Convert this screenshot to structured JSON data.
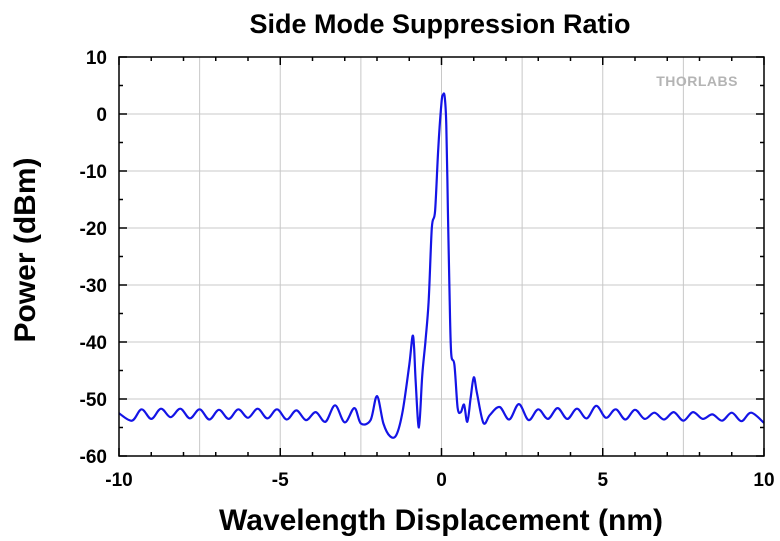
{
  "chart_data": {
    "type": "line",
    "title": "Side Mode Suppression Ratio",
    "xlabel": "Wavelength Displacement (nm)",
    "ylabel": "Power (dBm)",
    "xlim": [
      -10,
      10
    ],
    "ylim": [
      -60,
      10
    ],
    "xticks": [
      -10,
      -5,
      0,
      5,
      10
    ],
    "yticks": [
      10,
      0,
      -10,
      -20,
      -30,
      -40,
      -50,
      -60
    ],
    "grid": true,
    "watermark": "THORLABS",
    "series_color": "#1414e6",
    "series": [
      {
        "x": [
          -10.0,
          -9.6,
          -9.3,
          -9.0,
          -8.7,
          -8.4,
          -8.1,
          -7.8,
          -7.5,
          -7.2,
          -6.9,
          -6.6,
          -6.3,
          -6.0,
          -5.7,
          -5.4,
          -5.1,
          -4.8,
          -4.5,
          -4.2,
          -3.9,
          -3.6,
          -3.3,
          -3.0,
          -2.7,
          -2.5,
          -2.2,
          -2.0,
          -1.8,
          -1.6,
          -1.4,
          -1.2,
          -1.0,
          -0.9,
          -0.85,
          -0.8,
          -0.7,
          -0.6,
          -0.5,
          -0.4,
          -0.3,
          -0.2,
          -0.1,
          0.0,
          0.05,
          0.1,
          0.15,
          0.2,
          0.25,
          0.3,
          0.4,
          0.5,
          0.6,
          0.7,
          0.8,
          0.9,
          1.0,
          1.1,
          1.3,
          1.5,
          1.8,
          2.1,
          2.4,
          2.7,
          3.0,
          3.3,
          3.6,
          3.9,
          4.2,
          4.5,
          4.8,
          5.1,
          5.4,
          5.7,
          6.0,
          6.3,
          6.6,
          6.9,
          7.2,
          7.5,
          7.8,
          8.1,
          8.4,
          8.7,
          9.0,
          9.3,
          9.6,
          10.0
        ],
        "y": [
          -52.5,
          -53.8,
          -51.8,
          -53.5,
          -51.7,
          -53.2,
          -51.7,
          -53.4,
          -51.8,
          -53.6,
          -51.9,
          -53.5,
          -51.8,
          -53.3,
          -51.7,
          -53.4,
          -51.8,
          -53.6,
          -52.0,
          -53.7,
          -52.3,
          -54.0,
          -51.1,
          -54.1,
          -51.6,
          -54.3,
          -53.7,
          -49.5,
          -54.3,
          -56.5,
          -56.3,
          -52.0,
          -44.0,
          -39.0,
          -41.0,
          -47.0,
          -55.0,
          -46.0,
          -40.0,
          -33.0,
          -20.0,
          -17.0,
          -6.0,
          2.0,
          3.4,
          3.0,
          -2.0,
          -17.0,
          -32.0,
          -42.0,
          -44.0,
          -51.5,
          -52.3,
          -51.0,
          -54.0,
          -50.0,
          -46.2,
          -49.0,
          -54.2,
          -52.8,
          -51.4,
          -53.6,
          -50.9,
          -53.7,
          -51.8,
          -53.5,
          -51.6,
          -53.5,
          -51.7,
          -53.4,
          -51.2,
          -53.3,
          -51.8,
          -53.6,
          -51.9,
          -53.5,
          -52.4,
          -53.6,
          -52.3,
          -53.8,
          -52.3,
          -53.5,
          -52.7,
          -53.8,
          -52.4,
          -53.9,
          -52.4,
          -54.2
        ]
      }
    ]
  }
}
